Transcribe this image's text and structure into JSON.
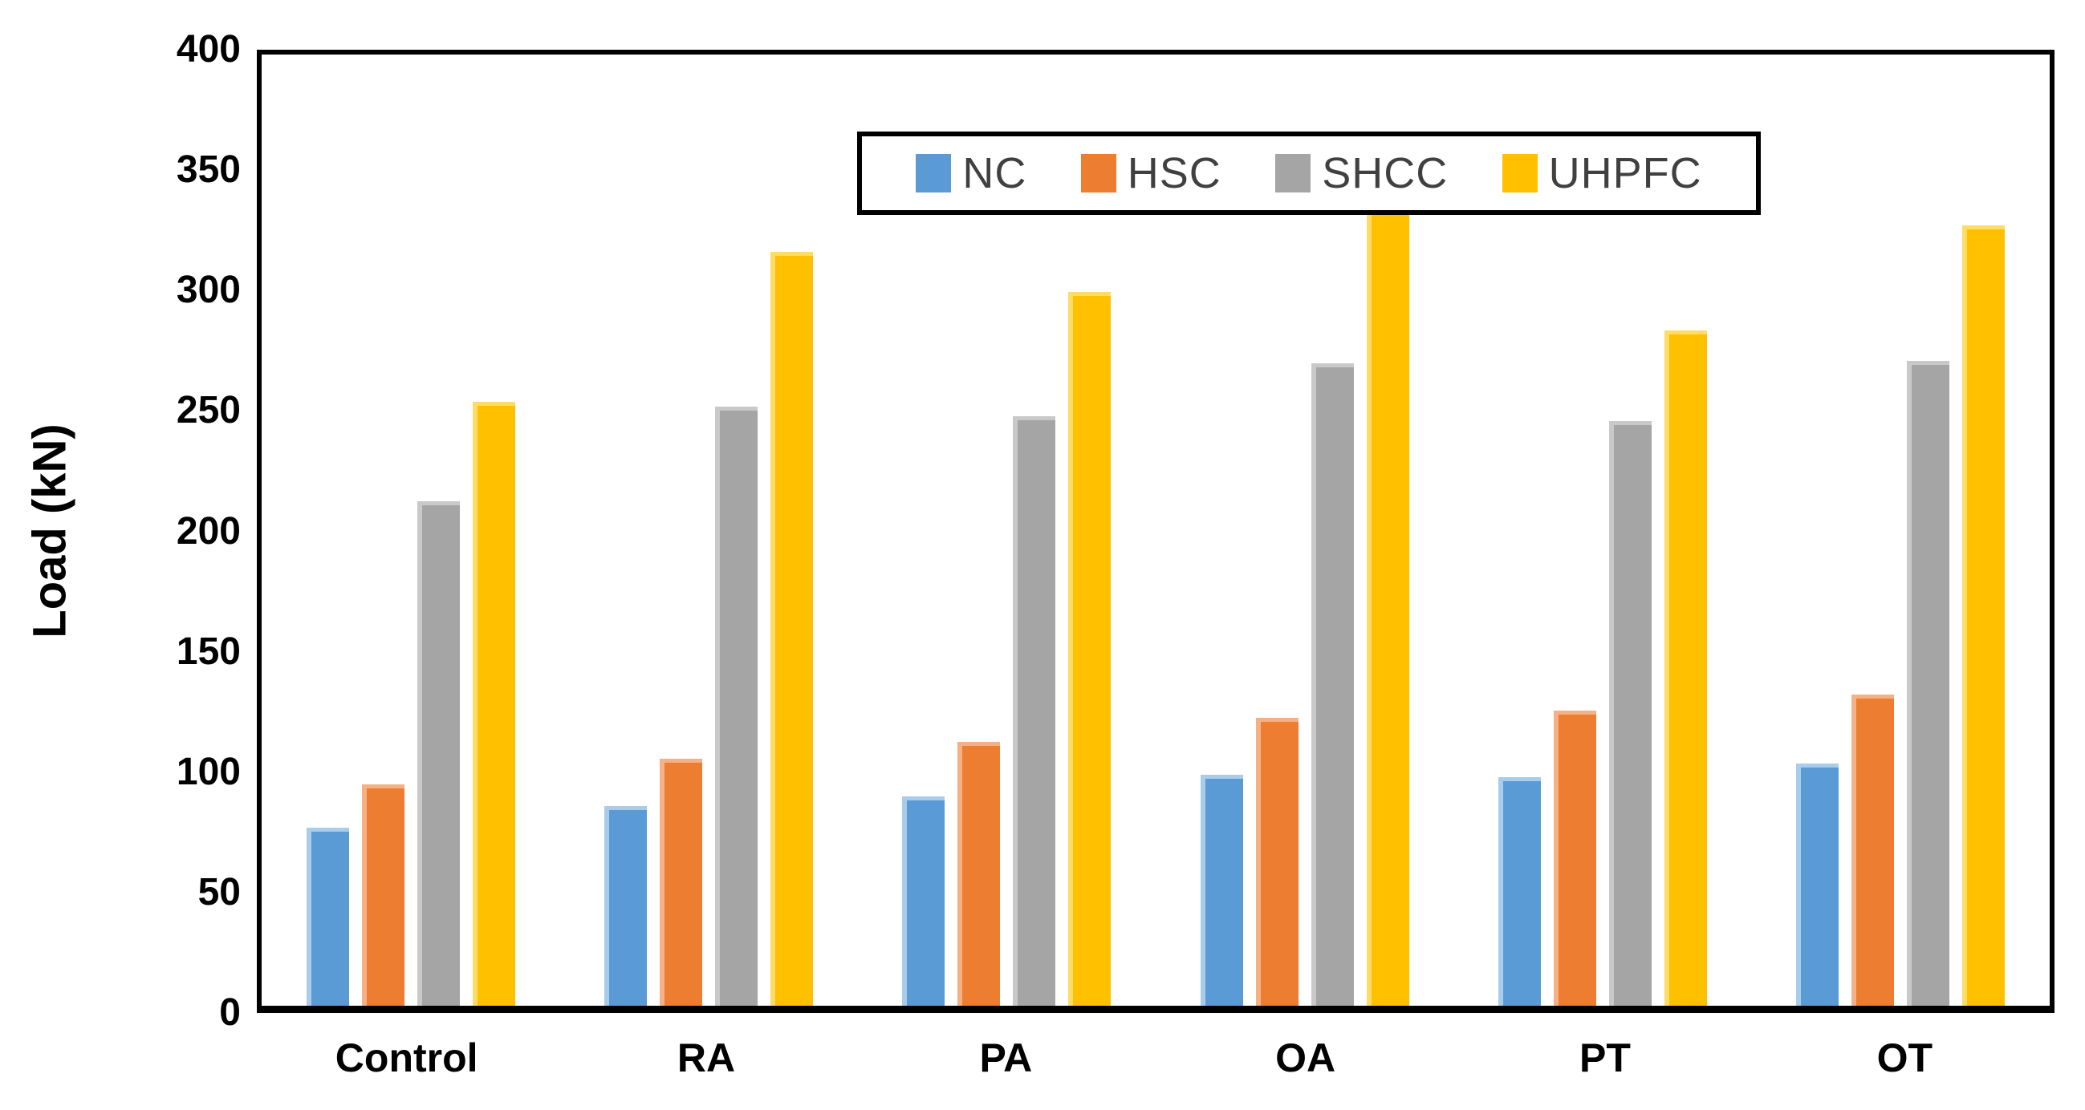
{
  "chart_data": {
    "type": "bar",
    "title": "",
    "xlabel": "",
    "ylabel": "Load (kN)",
    "ylim": [
      0,
      400
    ],
    "yticks": [
      0,
      50,
      100,
      150,
      200,
      250,
      300,
      350,
      400
    ],
    "grid": false,
    "legend_position": "top-center-inside",
    "categories": [
      "Control",
      "RA",
      "PA",
      "OA",
      "PT",
      "OT"
    ],
    "series": [
      {
        "name": "NC",
        "color": "#5B9BD5",
        "edge_color": "#A8CCEA",
        "values": [
          75,
          84,
          88,
          97,
          96,
          102
        ]
      },
      {
        "name": "HSC",
        "color": "#ED7D31",
        "edge_color": "#F5B183",
        "values": [
          93,
          104,
          111,
          121,
          124,
          131
        ]
      },
      {
        "name": "SHCC",
        "color": "#A5A5A5",
        "edge_color": "#C9C9C9",
        "values": [
          212,
          252,
          248,
          270,
          246,
          271
        ]
      },
      {
        "name": "UHPFC",
        "color": "#FFC000",
        "edge_color": "#FFDC66",
        "values": [
          254,
          317,
          300,
          342,
          284,
          328
        ]
      }
    ]
  },
  "frame": {
    "border_color": "#000000",
    "background": "#ffffff"
  }
}
